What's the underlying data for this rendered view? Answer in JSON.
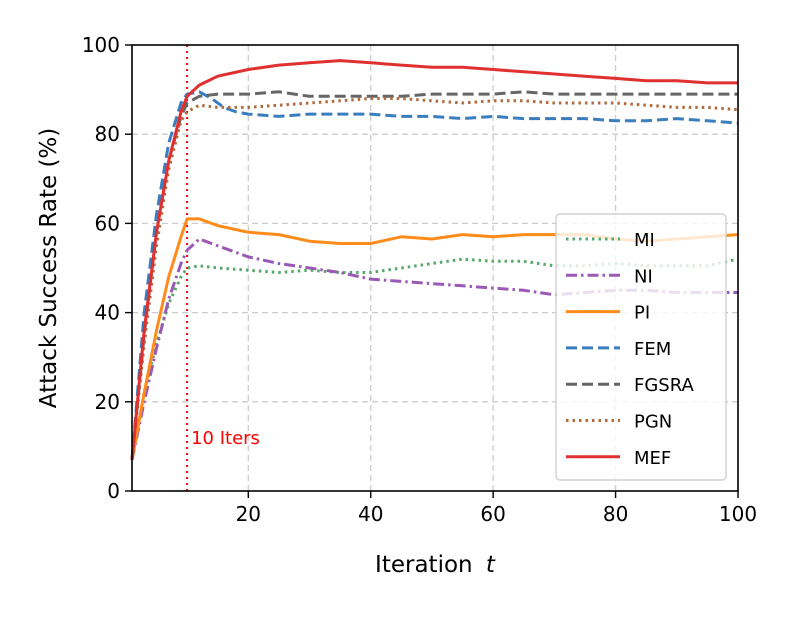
{
  "chart_data": {
    "type": "line",
    "xlabel": "Iteration",
    "xlabel_var": "t",
    "ylabel": "Attack Success Rate (%)",
    "xlim": [
      1,
      100
    ],
    "ylim": [
      0,
      100
    ],
    "xticks": [
      20,
      40,
      60,
      80,
      100
    ],
    "yticks": [
      0,
      20,
      40,
      60,
      80,
      100
    ],
    "grid": true,
    "legend_position": "center-right",
    "annotation": {
      "text": "10 Iters",
      "x": 10,
      "color": "#ff0000"
    },
    "series": [
      {
        "name": "MI",
        "color": "#55a868",
        "style": "dotted",
        "points": [
          [
            1,
            7
          ],
          [
            3,
            22
          ],
          [
            5,
            33
          ],
          [
            7,
            42
          ],
          [
            9,
            48
          ],
          [
            10,
            50
          ],
          [
            12,
            50.5
          ],
          [
            15,
            50
          ],
          [
            20,
            49.5
          ],
          [
            25,
            49
          ],
          [
            30,
            49.5
          ],
          [
            35,
            49
          ],
          [
            40,
            49
          ],
          [
            45,
            50
          ],
          [
            50,
            51
          ],
          [
            55,
            52
          ],
          [
            60,
            51.5
          ],
          [
            65,
            51.5
          ],
          [
            70,
            50.5
          ],
          [
            75,
            50.5
          ],
          [
            80,
            51
          ],
          [
            85,
            50.5
          ],
          [
            90,
            50.5
          ],
          [
            95,
            50.5
          ],
          [
            100,
            52
          ]
        ]
      },
      {
        "name": "NI",
        "color": "#9b59b6",
        "style": "dashdot",
        "points": [
          [
            1,
            7
          ],
          [
            3,
            20
          ],
          [
            5,
            32
          ],
          [
            7,
            43
          ],
          [
            9,
            51
          ],
          [
            10,
            54
          ],
          [
            12,
            56.5
          ],
          [
            14,
            55.5
          ],
          [
            17,
            54
          ],
          [
            20,
            52.5
          ],
          [
            25,
            51
          ],
          [
            30,
            50
          ],
          [
            35,
            49
          ],
          [
            40,
            47.5
          ],
          [
            45,
            47
          ],
          [
            50,
            46.5
          ],
          [
            55,
            46
          ],
          [
            60,
            45.5
          ],
          [
            65,
            45
          ],
          [
            70,
            44
          ],
          [
            75,
            44.5
          ],
          [
            80,
            45
          ],
          [
            85,
            45
          ],
          [
            90,
            44.5
          ],
          [
            95,
            44.5
          ],
          [
            100,
            44.5
          ]
        ]
      },
      {
        "name": "PI",
        "color": "#ff8c1a",
        "style": "solid",
        "points": [
          [
            1,
            7
          ],
          [
            3,
            22
          ],
          [
            5,
            36
          ],
          [
            7,
            48
          ],
          [
            9,
            57
          ],
          [
            10,
            61
          ],
          [
            12,
            61
          ],
          [
            15,
            59.5
          ],
          [
            20,
            58
          ],
          [
            25,
            57.5
          ],
          [
            30,
            56
          ],
          [
            35,
            55.5
          ],
          [
            40,
            55.5
          ],
          [
            45,
            57
          ],
          [
            50,
            56.5
          ],
          [
            55,
            57.5
          ],
          [
            60,
            57
          ],
          [
            65,
            57.5
          ],
          [
            70,
            57.5
          ],
          [
            75,
            57.5
          ],
          [
            80,
            56.5
          ],
          [
            85,
            56
          ],
          [
            90,
            56.5
          ],
          [
            95,
            57
          ],
          [
            100,
            57.5
          ]
        ]
      },
      {
        "name": "FEM",
        "color": "#3a7ebf",
        "style": "dashed",
        "points": [
          [
            1,
            7
          ],
          [
            3,
            40
          ],
          [
            5,
            62
          ],
          [
            7,
            78
          ],
          [
            9,
            87
          ],
          [
            10,
            89
          ],
          [
            12,
            89.5
          ],
          [
            14,
            88
          ],
          [
            16,
            86
          ],
          [
            18,
            85
          ],
          [
            20,
            84.5
          ],
          [
            25,
            84
          ],
          [
            30,
            84.5
          ],
          [
            35,
            84.5
          ],
          [
            40,
            84.5
          ],
          [
            45,
            84
          ],
          [
            50,
            84
          ],
          [
            55,
            83.5
          ],
          [
            60,
            84
          ],
          [
            65,
            83.5
          ],
          [
            70,
            83.5
          ],
          [
            75,
            83.5
          ],
          [
            80,
            83
          ],
          [
            85,
            83
          ],
          [
            90,
            83.5
          ],
          [
            95,
            83
          ],
          [
            100,
            82.5
          ]
        ]
      },
      {
        "name": "FGSRA",
        "color": "#666666",
        "style": "dashed",
        "points": [
          [
            1,
            7
          ],
          [
            3,
            35
          ],
          [
            5,
            58
          ],
          [
            7,
            74
          ],
          [
            9,
            84
          ],
          [
            10,
            87
          ],
          [
            12,
            88.5
          ],
          [
            15,
            89
          ],
          [
            20,
            89
          ],
          [
            25,
            89.5
          ],
          [
            30,
            88.5
          ],
          [
            35,
            88.5
          ],
          [
            40,
            88.5
          ],
          [
            45,
            88.5
          ],
          [
            50,
            89
          ],
          [
            55,
            89
          ],
          [
            60,
            89
          ],
          [
            65,
            89.5
          ],
          [
            70,
            89
          ],
          [
            75,
            89
          ],
          [
            80,
            89
          ],
          [
            85,
            89
          ],
          [
            90,
            89
          ],
          [
            95,
            89
          ],
          [
            100,
            89
          ]
        ]
      },
      {
        "name": "PGN",
        "color": "#b06a3c",
        "style": "dotted",
        "points": [
          [
            1,
            7
          ],
          [
            3,
            33
          ],
          [
            5,
            55
          ],
          [
            7,
            72
          ],
          [
            9,
            83
          ],
          [
            10,
            85
          ],
          [
            12,
            86.5
          ],
          [
            15,
            86
          ],
          [
            20,
            86
          ],
          [
            25,
            86.5
          ],
          [
            30,
            87
          ],
          [
            35,
            87.5
          ],
          [
            40,
            88
          ],
          [
            45,
            88
          ],
          [
            50,
            87.5
          ],
          [
            55,
            87
          ],
          [
            60,
            87.5
          ],
          [
            65,
            87.5
          ],
          [
            70,
            87
          ],
          [
            75,
            87
          ],
          [
            80,
            87
          ],
          [
            85,
            86.5
          ],
          [
            90,
            86
          ],
          [
            95,
            86
          ],
          [
            100,
            85.5
          ]
        ]
      },
      {
        "name": "MEF",
        "color": "#e03030",
        "style": "solid",
        "points": [
          [
            1,
            7
          ],
          [
            3,
            36
          ],
          [
            5,
            58
          ],
          [
            7,
            74
          ],
          [
            9,
            85
          ],
          [
            10,
            88.5
          ],
          [
            12,
            91
          ],
          [
            15,
            93
          ],
          [
            20,
            94.5
          ],
          [
            25,
            95.5
          ],
          [
            30,
            96
          ],
          [
            35,
            96.5
          ],
          [
            40,
            96
          ],
          [
            45,
            95.5
          ],
          [
            50,
            95
          ],
          [
            55,
            95
          ],
          [
            60,
            94.5
          ],
          [
            65,
            94
          ],
          [
            70,
            93.5
          ],
          [
            75,
            93
          ],
          [
            80,
            92.5
          ],
          [
            85,
            92
          ],
          [
            90,
            92
          ],
          [
            95,
            91.5
          ],
          [
            100,
            91.5
          ]
        ]
      }
    ]
  }
}
